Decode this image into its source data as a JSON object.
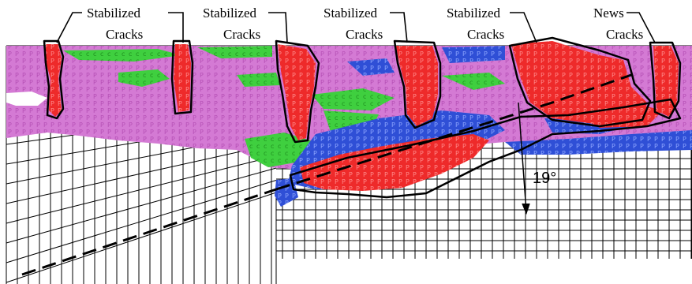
{
  "labels": [
    {
      "line1": "Stabilized",
      "line2": "Cracks"
    },
    {
      "line1": "Stabilized",
      "line2": "Cracks"
    },
    {
      "line1": "Stabilized",
      "line2": "Cracks"
    },
    {
      "line1": "Stabilized",
      "line2": "Cracks"
    },
    {
      "line1": "News",
      "line2": "Cracks"
    }
  ],
  "angle_label": "19°",
  "colors": {
    "magenta_zone": "#d070d0",
    "green_zone": "#33cc33",
    "red_zone": "#ee2222",
    "blue_zone": "#2244cc",
    "mesh_line": "#000000",
    "crack_outline": "#000000"
  }
}
